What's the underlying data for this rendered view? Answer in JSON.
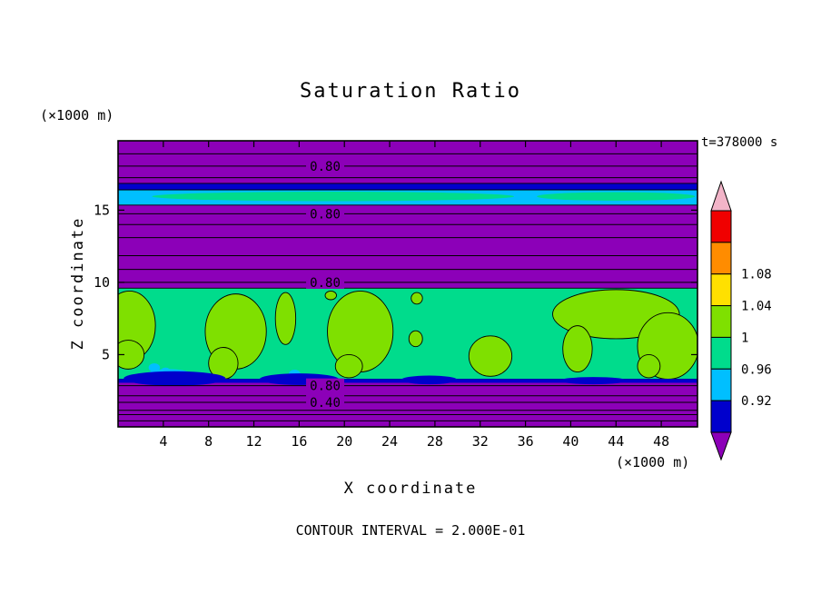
{
  "chart_data": {
    "type": "heatmap",
    "title": "Saturation Ratio",
    "time_label": "t=378000 s",
    "xlabel": "X coordinate",
    "ylabel": "Z coordinate",
    "x_unit_label": "(×1000 m)",
    "z_unit_label": "(×1000 m)",
    "caption": "CONTOUR INTERVAL = 2.000E-01",
    "x_range": [
      0,
      51.2
    ],
    "z_range": [
      0,
      19.8
    ],
    "x_ticks": [
      4,
      8,
      12,
      16,
      20,
      24,
      28,
      32,
      36,
      40,
      44,
      48
    ],
    "z_ticks": [
      5,
      10,
      15
    ],
    "grid": false,
    "contour_interval": 0.2,
    "contour_label_x": 18.3,
    "palette": {
      "purple": "#8C00B8",
      "navy": "#0000CC",
      "cyan": "#00BFFF",
      "green": "#00DC8C",
      "chartreuse": "#7FE000",
      "yellow": "#FFE000",
      "orange": "#FF8C00",
      "red": "#F00000",
      "pink": "#F2B4C8"
    },
    "regions": [
      {
        "kind": "rect",
        "color": "purple",
        "x": [
          0,
          51.2
        ],
        "z": [
          0,
          19.8
        ]
      },
      {
        "kind": "rect",
        "color": "navy",
        "x": [
          0,
          51.2
        ],
        "z": [
          16.4,
          16.85
        ],
        "stroke": true
      },
      {
        "kind": "rect",
        "color": "cyan",
        "x": [
          0,
          51.2
        ],
        "z": [
          15.35,
          16.4
        ],
        "stroke": true
      },
      {
        "kind": "ellipse",
        "color": "green",
        "cx": 19.0,
        "cz": 15.95,
        "rx": 16.0,
        "rz": 0.33
      },
      {
        "kind": "ellipse",
        "color": "green",
        "cx": 44.0,
        "cz": 15.95,
        "rx": 7.0,
        "rz": 0.3
      },
      {
        "kind": "rect",
        "color": "green",
        "x": [
          0,
          51.2
        ],
        "z": [
          3.3,
          9.6
        ],
        "stroke": true
      },
      {
        "kind": "ellipse",
        "color": "chartreuse",
        "cx": 1.0,
        "cz": 7.0,
        "rx": 2.3,
        "rz": 2.4,
        "stroke": true
      },
      {
        "kind": "ellipse",
        "color": "chartreuse",
        "cx": 0.9,
        "cz": 5.0,
        "rx": 1.4,
        "rz": 1.0,
        "stroke": true
      },
      {
        "kind": "ellipse",
        "color": "chartreuse",
        "cx": 10.4,
        "cz": 6.6,
        "rx": 2.7,
        "rz": 2.6,
        "stroke": true
      },
      {
        "kind": "ellipse",
        "color": "chartreuse",
        "cx": 9.3,
        "cz": 4.4,
        "rx": 1.3,
        "rz": 1.1,
        "stroke": true
      },
      {
        "kind": "ellipse",
        "color": "chartreuse",
        "cx": 14.8,
        "cz": 7.5,
        "rx": 0.9,
        "rz": 1.8,
        "stroke": true
      },
      {
        "kind": "ellipse",
        "color": "chartreuse",
        "cx": 21.4,
        "cz": 6.6,
        "rx": 2.9,
        "rz": 2.8,
        "stroke": true
      },
      {
        "kind": "ellipse",
        "color": "chartreuse",
        "cx": 20.4,
        "cz": 4.2,
        "rx": 1.2,
        "rz": 0.8,
        "stroke": true
      },
      {
        "kind": "ellipse",
        "color": "chartreuse",
        "cx": 26.3,
        "cz": 6.1,
        "rx": 0.6,
        "rz": 0.55,
        "stroke": true
      },
      {
        "kind": "ellipse",
        "color": "chartreuse",
        "cx": 26.4,
        "cz": 8.9,
        "rx": 0.5,
        "rz": 0.4,
        "stroke": true
      },
      {
        "kind": "ellipse",
        "color": "chartreuse",
        "cx": 18.8,
        "cz": 9.1,
        "rx": 0.5,
        "rz": 0.3,
        "stroke": true
      },
      {
        "kind": "ellipse",
        "color": "chartreuse",
        "cx": 32.9,
        "cz": 4.9,
        "rx": 1.9,
        "rz": 1.4,
        "stroke": true
      },
      {
        "kind": "ellipse",
        "color": "chartreuse",
        "cx": 44.0,
        "cz": 7.8,
        "rx": 5.6,
        "rz": 1.7,
        "stroke": true
      },
      {
        "kind": "ellipse",
        "color": "chartreuse",
        "cx": 48.6,
        "cz": 5.6,
        "rx": 2.7,
        "rz": 2.3,
        "stroke": true
      },
      {
        "kind": "ellipse",
        "color": "chartreuse",
        "cx": 40.6,
        "cz": 5.4,
        "rx": 1.3,
        "rz": 1.6,
        "stroke": true
      },
      {
        "kind": "ellipse",
        "color": "chartreuse",
        "cx": 46.9,
        "cz": 4.2,
        "rx": 1.0,
        "rz": 0.8,
        "stroke": true
      },
      {
        "kind": "ellipse",
        "color": "cyan",
        "cx": 3.2,
        "cz": 4.1,
        "rx": 0.5,
        "rz": 0.3
      },
      {
        "kind": "ellipse",
        "color": "cyan",
        "cx": 4.2,
        "cz": 3.85,
        "rx": 0.45,
        "rz": 0.25
      },
      {
        "kind": "ellipse",
        "color": "cyan",
        "cx": 15.6,
        "cz": 3.7,
        "rx": 0.5,
        "rz": 0.25
      },
      {
        "kind": "ellipse",
        "color": "cyan",
        "cx": 4.5,
        "cz": 3.7,
        "rx": 1.8,
        "rz": 0.3
      },
      {
        "kind": "rect",
        "color": "navy",
        "x": [
          0,
          51.2
        ],
        "z": [
          3.05,
          3.32
        ]
      },
      {
        "kind": "ellipse",
        "color": "navy",
        "cx": 5.0,
        "cz": 3.35,
        "rx": 4.5,
        "rz": 0.5
      },
      {
        "kind": "ellipse",
        "color": "navy",
        "cx": 16.0,
        "cz": 3.3,
        "rx": 3.5,
        "rz": 0.4
      },
      {
        "kind": "ellipse",
        "color": "navy",
        "cx": 27.5,
        "cz": 3.25,
        "rx": 2.5,
        "rz": 0.3
      },
      {
        "kind": "ellipse",
        "color": "navy",
        "cx": 42.0,
        "cz": 3.2,
        "rx": 3.0,
        "rz": 0.25
      }
    ],
    "contour_lines": [
      {
        "z": 18.9
      },
      {
        "z": 18.05,
        "label": "0.80"
      },
      {
        "z": 17.25
      },
      {
        "z": 14.75,
        "label": "0.80"
      },
      {
        "z": 14.0
      },
      {
        "z": 13.1
      },
      {
        "z": 11.85
      },
      {
        "z": 10.9
      },
      {
        "z": 10.0,
        "label": "0.80"
      },
      {
        "z": 2.85,
        "label": "0.80"
      },
      {
        "z": 2.15
      },
      {
        "z": 1.7,
        "label": "0.40"
      },
      {
        "z": 1.15
      },
      {
        "z": 0.85
      },
      {
        "z": 0.42
      }
    ],
    "colorbar": {
      "position": "right",
      "levels": [
        0.92,
        0.96,
        1,
        1.04,
        1.08
      ],
      "labels_top_to_bottom": [
        "1.08",
        "1.04",
        "1",
        "0.96",
        "0.92"
      ],
      "segments_top_to_bottom": [
        "red",
        "orange",
        "yellow",
        "chartreuse",
        "green",
        "cyan",
        "navy"
      ],
      "arrow_top": "pink",
      "arrow_bottom": "purple"
    }
  }
}
